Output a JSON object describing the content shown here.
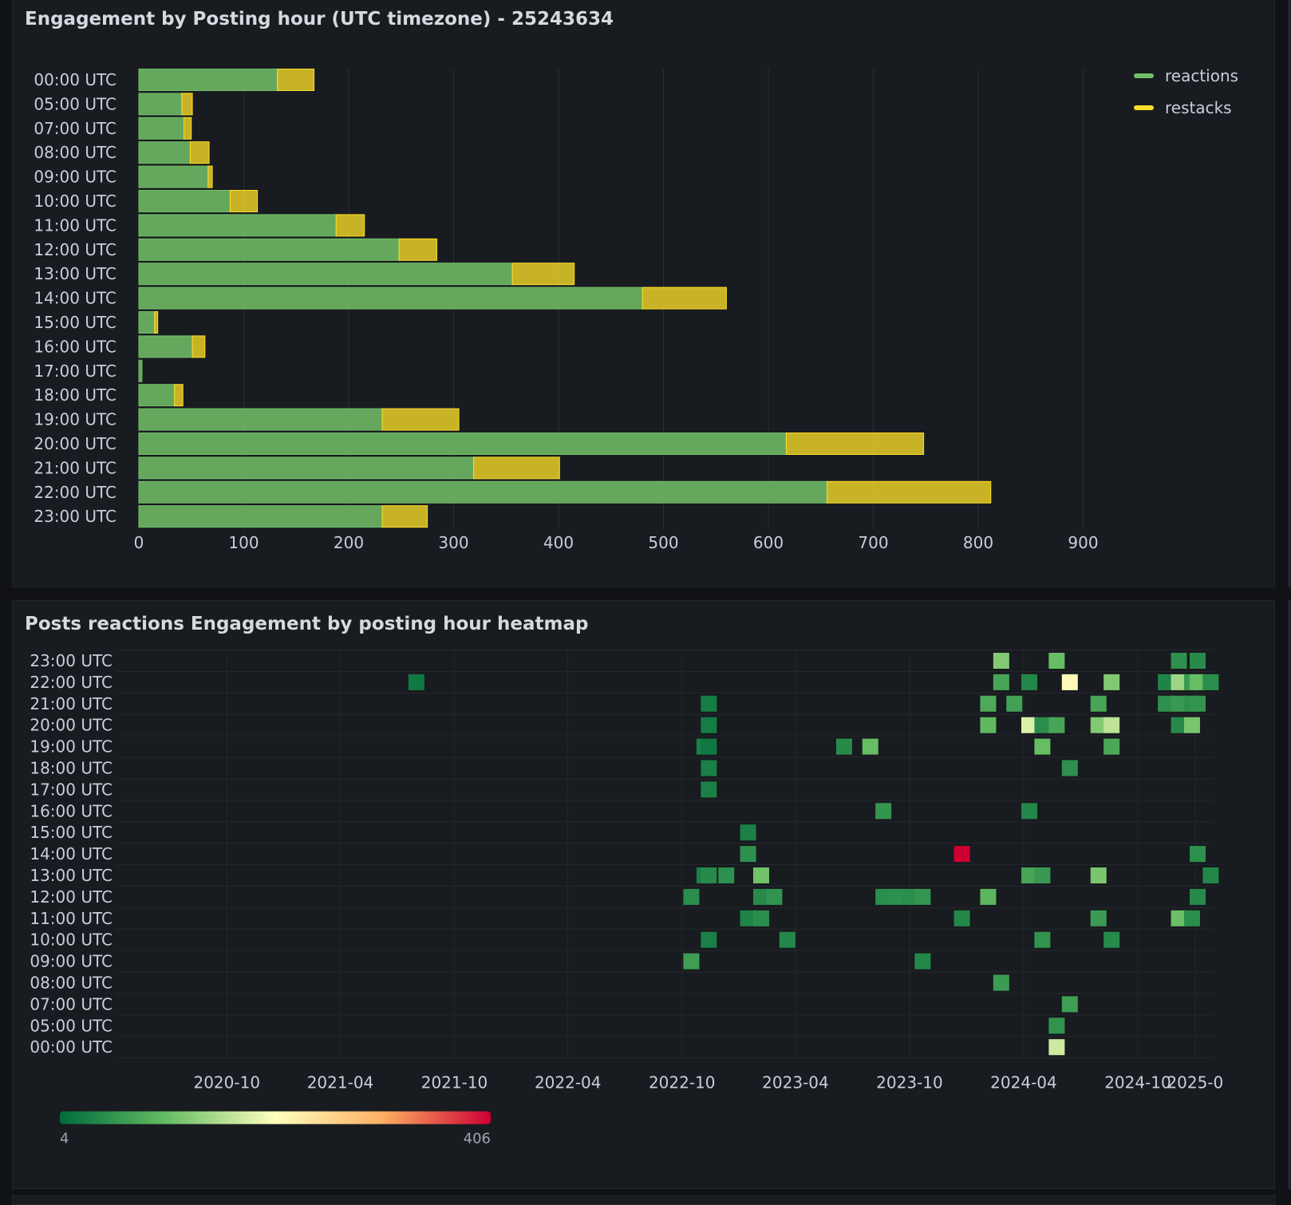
{
  "panels": [
    {
      "title": "Engagement by Posting hour (UTC timezone) - 25243634"
    },
    {
      "title": "Posts reactions Engagement by posting hour heatmap"
    }
  ],
  "chart_data": [
    {
      "type": "bar",
      "orientation": "horizontal",
      "stacked": true,
      "title": "Engagement by Posting hour (UTC timezone) - 25243634",
      "categories": [
        "00:00 UTC",
        "05:00 UTC",
        "07:00 UTC",
        "08:00 UTC",
        "09:00 UTC",
        "10:00 UTC",
        "11:00 UTC",
        "12:00 UTC",
        "13:00 UTC",
        "14:00 UTC",
        "15:00 UTC",
        "16:00 UTC",
        "17:00 UTC",
        "18:00 UTC",
        "19:00 UTC",
        "20:00 UTC",
        "21:00 UTC",
        "22:00 UTC",
        "23:00 UTC"
      ],
      "series": [
        {
          "name": "reactions",
          "color": "#73bf69",
          "values": [
            132,
            41,
            43,
            49,
            66,
            87,
            188,
            248,
            356,
            480,
            15,
            51,
            3,
            34,
            232,
            617,
            319,
            656,
            232
          ]
        },
        {
          "name": "restacks",
          "color": "#fade2a",
          "values": [
            35,
            10,
            7,
            18,
            4,
            26,
            27,
            36,
            59,
            80,
            3,
            12,
            0,
            8,
            73,
            131,
            82,
            156,
            43
          ]
        }
      ],
      "xlim": [
        0,
        900
      ],
      "xticks": [
        "0",
        "100",
        "200",
        "300",
        "400",
        "500",
        "600",
        "700",
        "800",
        "900"
      ],
      "grid": true,
      "legend": "top-right"
    },
    {
      "type": "heatmap",
      "title": "Posts reactions Engagement by posting hour heatmap",
      "y_categories": [
        "00:00 UTC",
        "05:00 UTC",
        "07:00 UTC",
        "08:00 UTC",
        "09:00 UTC",
        "10:00 UTC",
        "11:00 UTC",
        "12:00 UTC",
        "13:00 UTC",
        "14:00 UTC",
        "15:00 UTC",
        "16:00 UTC",
        "17:00 UTC",
        "18:00 UTC",
        "19:00 UTC",
        "20:00 UTC",
        "21:00 UTC",
        "22:00 UTC",
        "23:00 UTC"
      ],
      "xticks": [
        "2020-10",
        "2021-04",
        "2021-10",
        "2022-04",
        "2022-10",
        "2023-04",
        "2023-10",
        "2024-04",
        "2024-10",
        "2025-0"
      ],
      "xlim": [
        "2020-05-18",
        "2025-01-05"
      ],
      "color_scale": {
        "min": 4,
        "max": 406,
        "min_label": "4",
        "max_label": "406",
        "colors": [
          "#006b3c",
          "#66bd63",
          "#ffffbf",
          "#fdae61",
          "#cc0033"
        ]
      },
      "cells": [
        [
          "2021-08-01",
          "22:00 UTC",
          8
        ],
        [
          "2022-11-13",
          "21:00 UTC",
          10
        ],
        [
          "2022-11-13",
          "20:00 UTC",
          10
        ],
        [
          "2022-11-06",
          "19:00 UTC",
          12
        ],
        [
          "2022-11-13",
          "19:00 UTC",
          8
        ],
        [
          "2022-11-13",
          "18:00 UTC",
          12
        ],
        [
          "2022-11-13",
          "17:00 UTC",
          12
        ],
        [
          "2023-06-18",
          "19:00 UTC",
          18
        ],
        [
          "2023-07-30",
          "19:00 UTC",
          60
        ],
        [
          "2023-08-20",
          "16:00 UTC",
          25
        ],
        [
          "2024-04-10",
          "16:00 UTC",
          16
        ],
        [
          "2023-01-15",
          "15:00 UTC",
          12
        ],
        [
          "2023-01-15",
          "14:00 UTC",
          22
        ],
        [
          "2023-12-24",
          "14:00 UTC",
          406
        ],
        [
          "2025-01-05",
          "14:00 UTC",
          22
        ],
        [
          "2022-11-06",
          "13:00 UTC",
          12
        ],
        [
          "2022-11-13",
          "13:00 UTC",
          18
        ],
        [
          "2022-12-11",
          "13:00 UTC",
          22
        ],
        [
          "2023-02-05",
          "13:00 UTC",
          65
        ],
        [
          "2024-04-10",
          "13:00 UTC",
          38
        ],
        [
          "2024-05-01",
          "13:00 UTC",
          28
        ],
        [
          "2024-07-30",
          "13:00 UTC",
          70
        ],
        [
          "2025-01-26",
          "13:00 UTC",
          16
        ],
        [
          "2022-10-16",
          "12:00 UTC",
          20
        ],
        [
          "2023-02-05",
          "12:00 UTC",
          18
        ],
        [
          "2023-02-26",
          "12:00 UTC",
          24
        ],
        [
          "2023-08-20",
          "12:00 UTC",
          20
        ],
        [
          "2023-09-10",
          "12:00 UTC",
          22
        ],
        [
          "2023-10-01",
          "12:00 UTC",
          20
        ],
        [
          "2023-10-22",
          "12:00 UTC",
          25
        ],
        [
          "2024-02-04",
          "12:00 UTC",
          52
        ],
        [
          "2025-01-05",
          "12:00 UTC",
          18
        ],
        [
          "2023-01-15",
          "11:00 UTC",
          14
        ],
        [
          "2023-02-05",
          "11:00 UTC",
          20
        ],
        [
          "2023-12-24",
          "11:00 UTC",
          16
        ],
        [
          "2024-07-30",
          "11:00 UTC",
          30
        ],
        [
          "2024-12-06",
          "11:00 UTC",
          62
        ],
        [
          "2024-12-27",
          "11:00 UTC",
          20
        ],
        [
          "2022-11-13",
          "10:00 UTC",
          12
        ],
        [
          "2023-03-19",
          "10:00 UTC",
          16
        ],
        [
          "2024-05-01",
          "10:00 UTC",
          24
        ],
        [
          "2024-08-20",
          "10:00 UTC",
          18
        ],
        [
          "2022-10-16",
          "09:00 UTC",
          32
        ],
        [
          "2023-10-22",
          "09:00 UTC",
          16
        ],
        [
          "2024-02-25",
          "08:00 UTC",
          30
        ],
        [
          "2024-06-14",
          "07:00 UTC",
          32
        ],
        [
          "2024-05-24",
          "05:00 UTC",
          24
        ],
        [
          "2024-05-24",
          "00:00 UTC",
          120
        ],
        [
          "2024-02-25",
          "23:00 UTC",
          75
        ],
        [
          "2024-05-24",
          "23:00 UTC",
          60
        ],
        [
          "2024-12-06",
          "23:00 UTC",
          22
        ],
        [
          "2025-01-05",
          "23:00 UTC",
          18
        ],
        [
          "2024-02-25",
          "22:00 UTC",
          38
        ],
        [
          "2024-04-10",
          "22:00 UTC",
          16
        ],
        [
          "2024-06-14",
          "22:00 UTC",
          160
        ],
        [
          "2024-08-20",
          "22:00 UTC",
          75
        ],
        [
          "2024-11-15",
          "22:00 UTC",
          14
        ],
        [
          "2024-12-06",
          "22:00 UTC",
          90
        ],
        [
          "2024-12-27",
          "22:00 UTC",
          30
        ],
        [
          "2025-01-05",
          "22:00 UTC",
          60
        ],
        [
          "2025-01-26",
          "22:00 UTC",
          20
        ],
        [
          "2024-02-04",
          "21:00 UTC",
          42
        ],
        [
          "2024-03-17",
          "21:00 UTC",
          34
        ],
        [
          "2024-07-30",
          "21:00 UTC",
          38
        ],
        [
          "2024-11-15",
          "21:00 UTC",
          22
        ],
        [
          "2024-12-06",
          "21:00 UTC",
          28
        ],
        [
          "2024-12-27",
          "21:00 UTC",
          22
        ],
        [
          "2025-01-05",
          "21:00 UTC",
          24
        ],
        [
          "2024-02-04",
          "20:00 UTC",
          55
        ],
        [
          "2024-04-10",
          "20:00 UTC",
          130
        ],
        [
          "2024-05-01",
          "20:00 UTC",
          20
        ],
        [
          "2024-05-24",
          "20:00 UTC",
          38
        ],
        [
          "2024-07-30",
          "20:00 UTC",
          75
        ],
        [
          "2024-08-20",
          "20:00 UTC",
          110
        ],
        [
          "2024-12-06",
          "20:00 UTC",
          18
        ],
        [
          "2024-12-27",
          "20:00 UTC",
          70
        ],
        [
          "2024-05-01",
          "19:00 UTC",
          60
        ],
        [
          "2024-08-20",
          "19:00 UTC",
          40
        ],
        [
          "2024-06-14",
          "18:00 UTC",
          22
        ]
      ],
      "grid": true
    }
  ]
}
